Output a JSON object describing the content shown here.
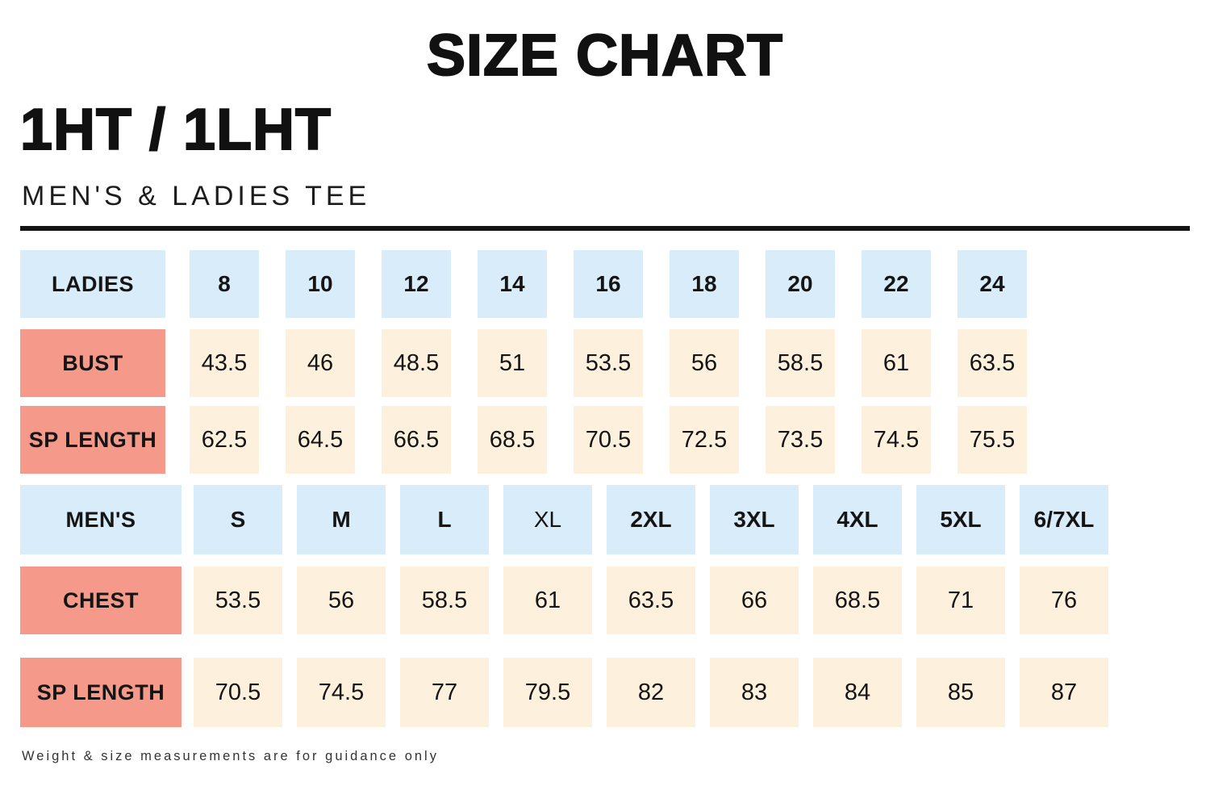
{
  "page": {
    "title": "SIZE CHART",
    "product_code": "1HT / 1LHT",
    "subtitle": "MEN'S & LADIES TEE",
    "footnote": "Weight & size measurements are for guidance only"
  },
  "colors": {
    "size_header_bg": "#d9ecf9",
    "measure_label_bg": "#f59a8a",
    "value_cell_bg": "#fdf1de",
    "text": "#161616"
  },
  "ladies_table": {
    "header": {
      "label": "LADIES",
      "sizes": [
        "8",
        "10",
        "12",
        "14",
        "16",
        "18",
        "20",
        "22",
        "24"
      ]
    },
    "rows": [
      {
        "label": "BUST",
        "values": [
          "43.5",
          "46",
          "48.5",
          "51",
          "53.5",
          "56",
          "58.5",
          "61",
          "63.5"
        ]
      },
      {
        "label": "SP LENGTH",
        "values": [
          "62.5",
          "64.5",
          "66.5",
          "68.5",
          "70.5",
          "72.5",
          "73.5",
          "74.5",
          "75.5"
        ]
      }
    ]
  },
  "mens_table": {
    "header": {
      "label": "MEN'S",
      "sizes": [
        "S",
        "M",
        "L",
        "XL",
        "2XL",
        "3XL",
        "4XL",
        "5XL",
        "6/7XL"
      ]
    },
    "rows": [
      {
        "label": "CHEST",
        "values": [
          "53.5",
          "56",
          "58.5",
          "61",
          "63.5",
          "66",
          "68.5",
          "71",
          "76"
        ]
      },
      {
        "label": "SP LENGTH",
        "values": [
          "70.5",
          "74.5",
          "77",
          "79.5",
          "82",
          "83",
          "84",
          "85",
          "87"
        ]
      }
    ]
  }
}
